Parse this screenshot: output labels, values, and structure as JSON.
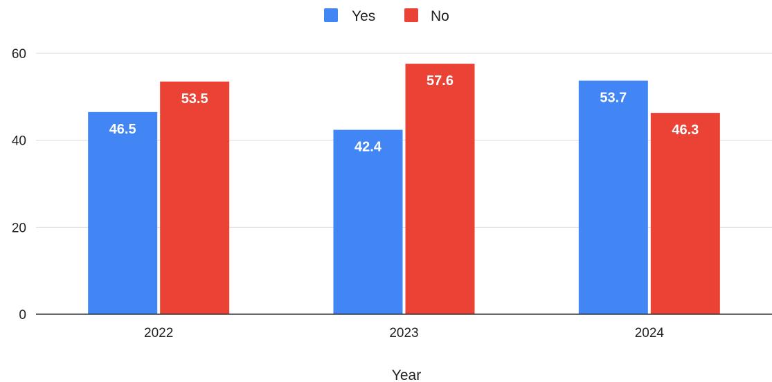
{
  "chart_data": {
    "type": "bar",
    "title": "",
    "xlabel": "Year",
    "ylabel": "",
    "categories": [
      "2022",
      "2023",
      "2024"
    ],
    "series": [
      {
        "name": "Yes",
        "color": "#4285F4",
        "values": [
          46.5,
          42.4,
          53.7
        ]
      },
      {
        "name": "No",
        "color": "#EA4335",
        "values": [
          53.5,
          57.6,
          46.3
        ]
      }
    ],
    "ylim": [
      0,
      60
    ],
    "yticks": [
      "0",
      "20",
      "40",
      "60"
    ],
    "grid": true,
    "legend": "top-center",
    "data_labels": true
  }
}
